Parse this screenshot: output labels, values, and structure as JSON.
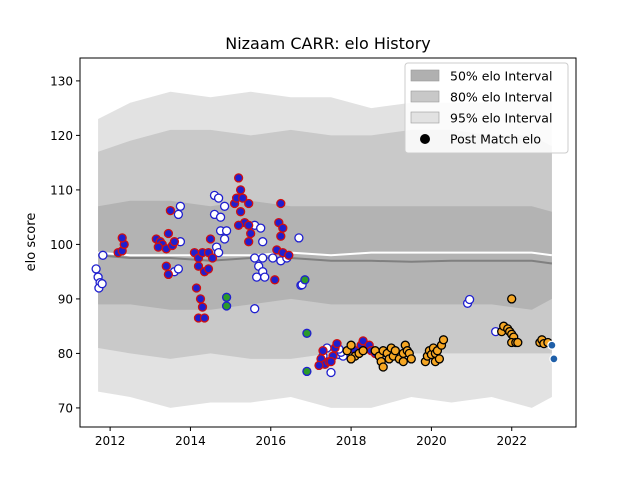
{
  "chart_data": {
    "type": "scatter",
    "title": "Nizaam CARR: elo History",
    "xlabel": "",
    "ylabel": "elo score",
    "xlim": [
      2011.25,
      2023.6
    ],
    "ylim": [
      66.5,
      134.2
    ],
    "xticks": [
      2012,
      2014,
      2016,
      2018,
      2020,
      2022
    ],
    "xtick_labels": [
      "2012",
      "2014",
      "2016",
      "2018",
      "2020",
      "2022"
    ],
    "yticks": [
      70,
      80,
      90,
      100,
      110,
      120,
      130
    ],
    "ytick_labels": [
      "70",
      "80",
      "90",
      "100",
      "110",
      "120",
      "130"
    ],
    "grid": false,
    "legend_position": "top-right",
    "legend": [
      {
        "label": "50% elo Interval",
        "kind": "patch",
        "color": "#b0b0b0"
      },
      {
        "label": "80% elo Interval",
        "kind": "patch",
        "color": "#c8c8c8"
      },
      {
        "label": "95% elo Interval",
        "kind": "patch",
        "color": "#e2e2e2"
      },
      {
        "label": "Post Match elo",
        "kind": "marker",
        "color": "#000000"
      }
    ],
    "colors": {
      "band95": "#e2e2e2",
      "band80": "#c9c9c9",
      "band50": "#b3b3b3",
      "mean_line": "#808080",
      "median_line": "#ffffff"
    },
    "bands": {
      "x": [
        2011.7,
        2012.5,
        2013.5,
        2014.5,
        2015.5,
        2016.5,
        2017.5,
        2018.5,
        2019.5,
        2020.5,
        2021.5,
        2022.5,
        2023.0
      ],
      "p95_low": [
        73,
        72,
        70,
        71,
        71,
        72,
        70,
        70,
        72,
        71,
        72,
        70,
        72
      ],
      "p95_high": [
        123,
        126,
        128,
        127,
        128,
        127,
        127,
        125,
        126,
        126,
        126,
        127,
        127
      ],
      "p80_low": [
        81,
        80,
        79,
        80,
        79,
        79,
        80,
        80,
        80,
        80,
        80,
        80,
        80
      ],
      "p80_high": [
        117,
        119,
        121,
        121,
        120,
        121,
        120,
        120,
        121,
        121,
        120,
        120,
        118
      ],
      "p50_low": [
        89,
        89,
        88,
        88,
        89,
        90,
        89,
        89,
        89,
        89,
        89,
        88,
        90
      ],
      "p50_high": [
        107,
        108,
        108,
        107,
        108,
        107,
        107,
        107,
        107,
        107,
        107,
        107,
        106
      ],
      "mean": [
        98,
        97.5,
        97.5,
        97,
        97.5,
        97.5,
        97,
        97,
        96.8,
        97,
        97,
        97,
        96.5
      ],
      "median": [
        98.5,
        98,
        98,
        98,
        98,
        98.5,
        98,
        98.5,
        98.5,
        98.5,
        98.5,
        98.5,
        98
      ]
    },
    "series": [
      {
        "style": {
          "fill": "#ffffff",
          "edge": "#1f1fcf"
        },
        "points": [
          [
            2011.65,
            95.5
          ],
          [
            2011.7,
            94
          ],
          [
            2011.75,
            93
          ],
          [
            2011.72,
            92
          ],
          [
            2011.8,
            92.8
          ],
          [
            2011.82,
            98
          ],
          [
            2013.75,
            107
          ],
          [
            2013.7,
            105.5
          ],
          [
            2013.75,
            100.5
          ],
          [
            2013.6,
            95
          ],
          [
            2013.7,
            95.5
          ],
          [
            2014.6,
            109
          ],
          [
            2014.7,
            108.5
          ],
          [
            2014.6,
            105.5
          ],
          [
            2014.75,
            105
          ],
          [
            2014.85,
            107
          ],
          [
            2014.75,
            102.5
          ],
          [
            2014.9,
            102.5
          ],
          [
            2014.85,
            101
          ],
          [
            2014.65,
            99.5
          ],
          [
            2014.7,
            98.5
          ],
          [
            2015.6,
            103.5
          ],
          [
            2015.75,
            103
          ],
          [
            2015.8,
            100.5
          ],
          [
            2015.6,
            97.5
          ],
          [
            2015.8,
            97.5
          ],
          [
            2015.7,
            96
          ],
          [
            2015.65,
            94
          ],
          [
            2015.8,
            95
          ],
          [
            2015.85,
            94
          ],
          [
            2015.6,
            88.2
          ],
          [
            2016.05,
            97.5
          ],
          [
            2016.25,
            97
          ],
          [
            2016.4,
            97.5
          ],
          [
            2016.7,
            101.2
          ],
          [
            2016.75,
            92.5
          ],
          [
            2016.78,
            92.6
          ],
          [
            2017.5,
            76.5
          ],
          [
            2017.7,
            79.8
          ],
          [
            2017.8,
            79.5
          ],
          [
            2017.75,
            80.2
          ],
          [
            2017.7,
            80.8
          ],
          [
            2017.3,
            79.5
          ],
          [
            2017.4,
            81
          ],
          [
            2020.9,
            89.2
          ],
          [
            2020.95,
            89.9
          ],
          [
            2021.6,
            84
          ]
        ]
      },
      {
        "style": {
          "fill": "#1f1fcf",
          "edge": "#d01010"
        },
        "points": [
          [
            2012.2,
            98.5
          ],
          [
            2012.3,
            98.8
          ],
          [
            2012.35,
            100
          ],
          [
            2012.3,
            101.2
          ],
          [
            2013.15,
            101
          ],
          [
            2013.25,
            100.5
          ],
          [
            2013.3,
            100
          ],
          [
            2013.2,
            99.5
          ],
          [
            2013.4,
            99.2
          ],
          [
            2013.55,
            99.8
          ],
          [
            2013.6,
            100.5
          ],
          [
            2013.45,
            102
          ],
          [
            2013.5,
            106.2
          ],
          [
            2013.4,
            96
          ],
          [
            2013.45,
            94.5
          ],
          [
            2014.1,
            98.5
          ],
          [
            2014.2,
            97.5
          ],
          [
            2014.3,
            98.5
          ],
          [
            2014.45,
            98.5
          ],
          [
            2014.55,
            97.5
          ],
          [
            2014.2,
            96
          ],
          [
            2014.35,
            95
          ],
          [
            2014.45,
            95.5
          ],
          [
            2014.5,
            101
          ],
          [
            2014.15,
            92
          ],
          [
            2014.25,
            90
          ],
          [
            2014.3,
            88.5
          ],
          [
            2014.2,
            86.5
          ],
          [
            2014.35,
            86.5
          ],
          [
            2015.1,
            107.5
          ],
          [
            2015.2,
            112.2
          ],
          [
            2015.25,
            110
          ],
          [
            2015.15,
            108.5
          ],
          [
            2015.3,
            108.5
          ],
          [
            2015.45,
            107.5
          ],
          [
            2015.25,
            106
          ],
          [
            2015.35,
            104
          ],
          [
            2015.45,
            103.5
          ],
          [
            2015.2,
            103.5
          ],
          [
            2015.5,
            102
          ],
          [
            2015.45,
            100.5
          ],
          [
            2016.25,
            107.5
          ],
          [
            2016.2,
            104
          ],
          [
            2016.3,
            103
          ],
          [
            2016.25,
            101.5
          ],
          [
            2016.15,
            99
          ],
          [
            2016.3,
            98.5
          ],
          [
            2016.45,
            98
          ],
          [
            2016.1,
            93.5
          ],
          [
            2017.25,
            79
          ],
          [
            2017.3,
            80.5
          ],
          [
            2017.35,
            78
          ],
          [
            2017.45,
            78.5
          ],
          [
            2017.55,
            79.5
          ],
          [
            2017.6,
            81
          ],
          [
            2017.65,
            81.8
          ],
          [
            2017.5,
            78.5
          ],
          [
            2017.2,
            77.8
          ],
          [
            2018.1,
            80.5
          ],
          [
            2018.25,
            81.5
          ],
          [
            2018.3,
            82.3
          ],
          [
            2018.45,
            81.5
          ],
          [
            2018.5,
            80.5
          ],
          [
            2018.6,
            80
          ]
        ]
      },
      {
        "style": {
          "fill": "#2a9a2a",
          "edge": "#1f1fcf"
        },
        "points": [
          [
            2014.9,
            90.3
          ],
          [
            2014.9,
            88.7
          ],
          [
            2016.85,
            93.5
          ],
          [
            2016.9,
            83.7
          ],
          [
            2016.9,
            76.7
          ]
        ]
      },
      {
        "style": {
          "fill": "#f5a623",
          "edge": "#000000"
        },
        "points": [
          [
            2017.9,
            80.5
          ],
          [
            2018.0,
            81.5
          ],
          [
            2018.1,
            79.5
          ],
          [
            2018.2,
            80
          ],
          [
            2018.0,
            79
          ],
          [
            2018.3,
            80.5
          ],
          [
            2018.6,
            80.5
          ],
          [
            2018.7,
            79.5
          ],
          [
            2018.75,
            78.5
          ],
          [
            2018.8,
            80.5
          ],
          [
            2018.9,
            80
          ],
          [
            2018.95,
            79
          ],
          [
            2018.8,
            77.5
          ],
          [
            2019.0,
            81
          ],
          [
            2019.05,
            79.5
          ],
          [
            2019.1,
            80.5
          ],
          [
            2019.2,
            79
          ],
          [
            2019.3,
            80
          ],
          [
            2019.35,
            81.5
          ],
          [
            2019.4,
            80.5
          ],
          [
            2019.45,
            80
          ],
          [
            2019.5,
            79
          ],
          [
            2019.3,
            78.5
          ],
          [
            2019.85,
            78.5
          ],
          [
            2019.9,
            79.5
          ],
          [
            2019.95,
            80.5
          ],
          [
            2020.0,
            79.8
          ],
          [
            2020.05,
            81
          ],
          [
            2020.1,
            80
          ],
          [
            2020.15,
            80.5
          ],
          [
            2020.1,
            78.5
          ],
          [
            2020.2,
            79
          ],
          [
            2020.25,
            81.5
          ],
          [
            2020.3,
            82.5
          ],
          [
            2021.75,
            84
          ],
          [
            2021.8,
            85
          ],
          [
            2021.9,
            84.5
          ],
          [
            2021.95,
            84
          ],
          [
            2022.0,
            83.5
          ],
          [
            2022.05,
            83
          ],
          [
            2022.0,
            82
          ],
          [
            2022.1,
            82
          ],
          [
            2022.15,
            82
          ],
          [
            2022.0,
            90
          ],
          [
            2022.7,
            82
          ],
          [
            2022.75,
            82.5
          ],
          [
            2022.8,
            81.8
          ],
          [
            2022.9,
            82
          ]
        ]
      },
      {
        "style": {
          "fill": "#1f5fa8",
          "edge": "#ffffff"
        },
        "points": [
          [
            2023.0,
            81.5
          ],
          [
            2023.05,
            79
          ]
        ]
      }
    ]
  }
}
